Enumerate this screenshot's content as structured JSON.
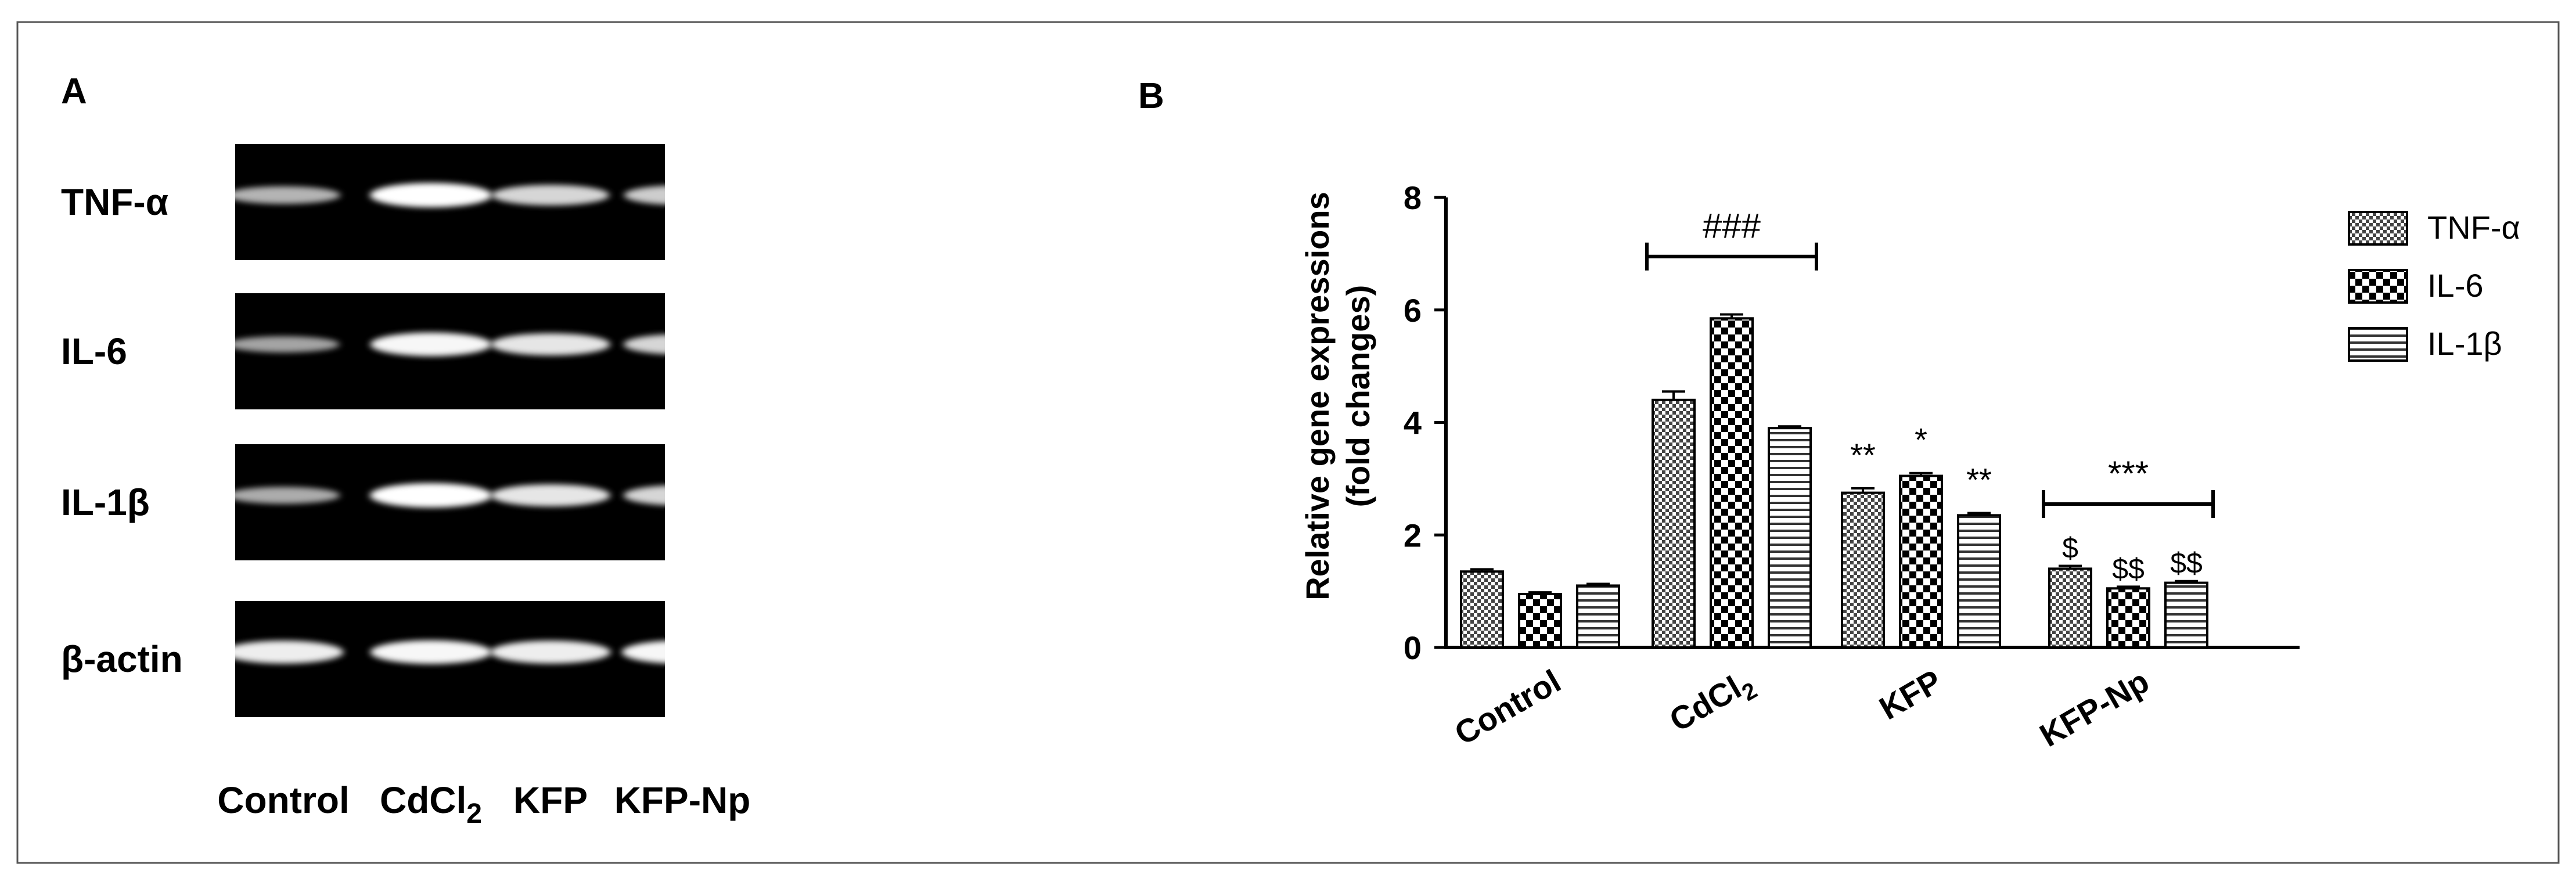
{
  "panel_a": {
    "label": "A",
    "gel_color": "#000000",
    "band_color": "#ffffff",
    "rows": [
      {
        "label": "TNF-α",
        "intensities": [
          0.55,
          1.0,
          0.75,
          0.7
        ]
      },
      {
        "label": "IL-6",
        "intensities": [
          0.45,
          0.95,
          0.85,
          0.75
        ]
      },
      {
        "label": "IL-1β",
        "intensities": [
          0.5,
          1.0,
          0.85,
          0.75
        ]
      },
      {
        "label": "β-actin",
        "intensities": [
          0.9,
          0.95,
          0.9,
          0.95
        ]
      }
    ],
    "lanes": [
      {
        "label": "Control"
      },
      {
        "label": "CdCl",
        "subscript": "2"
      },
      {
        "label": "KFP"
      },
      {
        "label": "KFP-Np"
      }
    ]
  },
  "panel_b": {
    "label": "B",
    "legend_position": "right"
  },
  "chart_data": {
    "type": "bar",
    "ylabel_line1": "Relative gene expressions",
    "ylabel_line2": "(fold changes)",
    "ylim": [
      0,
      8
    ],
    "yticks": [
      "0",
      "2",
      "4",
      "6",
      "8"
    ],
    "categories": [
      {
        "label": "Control",
        "subscript": ""
      },
      {
        "label": "CdCl",
        "subscript": "2"
      },
      {
        "label": "KFP",
        "subscript": ""
      },
      {
        "label": "KFP-Np",
        "subscript": ""
      }
    ],
    "series": [
      {
        "name": "TNF-α",
        "pattern": "checker-fine",
        "values": [
          1.35,
          4.4,
          2.75,
          1.4
        ],
        "errors": [
          0.04,
          0.15,
          0.08,
          0.05
        ]
      },
      {
        "name": "IL-6",
        "pattern": "checker-coarse",
        "values": [
          0.95,
          5.85,
          3.05,
          1.05
        ],
        "errors": [
          0.03,
          0.07,
          0.05,
          0.03
        ]
      },
      {
        "name": "IL-1β",
        "pattern": "horizontal-lines",
        "values": [
          1.1,
          3.9,
          2.35,
          1.15
        ],
        "errors": [
          0.03,
          0.03,
          0.04,
          0.03
        ]
      }
    ],
    "annotations": [
      {
        "text": "###",
        "type": "bracket",
        "category": 1
      },
      {
        "text": "***",
        "type": "bracket",
        "category": 3
      },
      {
        "text": "**",
        "category": 2,
        "series": 0
      },
      {
        "text": "*",
        "category": 2,
        "series": 1
      },
      {
        "text": "**",
        "category": 2,
        "series": 2
      },
      {
        "text": "$",
        "category": 3,
        "series": 0
      },
      {
        "text": "$$",
        "category": 3,
        "series": 1
      },
      {
        "text": "$$",
        "category": 3,
        "series": 2
      }
    ]
  }
}
